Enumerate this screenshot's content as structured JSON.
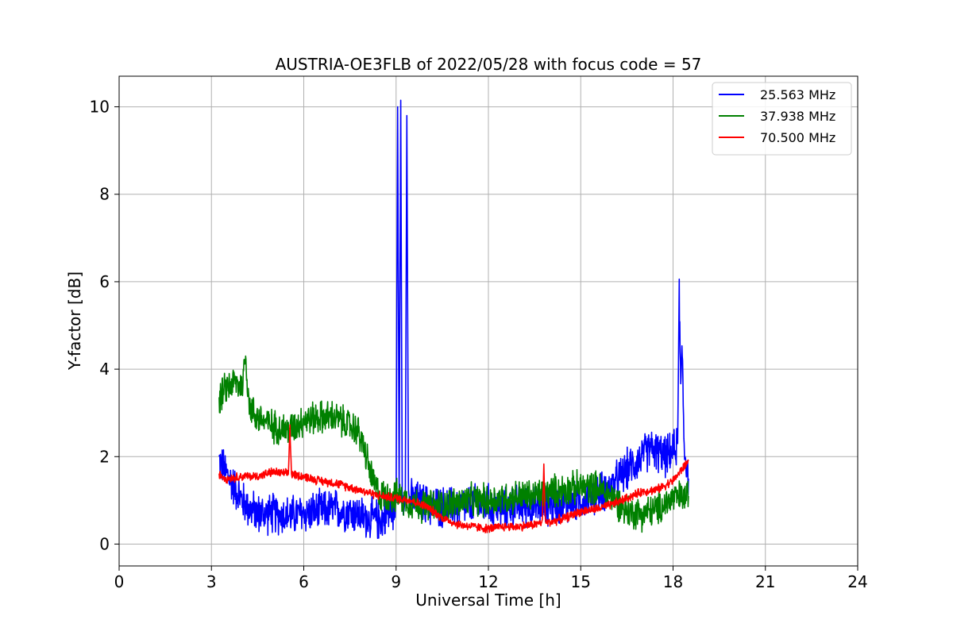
{
  "chart_data": {
    "type": "line",
    "title": "AUSTRIA-OE3FLB of 2022/05/28 with focus code = 57",
    "xlabel": "Universal Time [h]",
    "ylabel": "Y-factor [dB]",
    "xlim": [
      0,
      24
    ],
    "ylim": [
      -0.5,
      10.7
    ],
    "xticks": [
      0,
      3,
      6,
      9,
      12,
      15,
      18,
      21,
      24
    ],
    "xtick_labels": [
      "0",
      "3",
      "6",
      "9",
      "12",
      "15",
      "18",
      "21",
      "24"
    ],
    "yticks": [
      0,
      2,
      4,
      6,
      8,
      10
    ],
    "ytick_labels": [
      "0",
      "2",
      "4",
      "6",
      "8",
      "10"
    ],
    "grid": true,
    "legend_position": "top-right",
    "series": [
      {
        "name": "25.563 MHz",
        "color": "#0000ff",
        "x": [
          3.25,
          3.5,
          3.75,
          4.0,
          4.25,
          4.5,
          5.0,
          5.5,
          6.0,
          6.5,
          7.0,
          7.5,
          8.0,
          8.5,
          8.9,
          9.0,
          9.05,
          9.1,
          9.15,
          9.2,
          9.3,
          9.35,
          9.4,
          9.45,
          9.6,
          10.0,
          10.5,
          11.0,
          11.5,
          12.0,
          12.5,
          13.0,
          13.5,
          14.0,
          14.5,
          15.0,
          15.5,
          16.0,
          16.5,
          17.0,
          17.25,
          17.5,
          17.75,
          18.0,
          18.15,
          18.2,
          18.25,
          18.3,
          18.35,
          18.4,
          18.5
        ],
        "values": [
          1.9,
          1.6,
          1.3,
          1.0,
          0.8,
          0.7,
          0.7,
          0.65,
          0.7,
          0.75,
          0.8,
          0.75,
          0.6,
          0.55,
          0.8,
          1.0,
          10.0,
          1.2,
          10.15,
          1.2,
          1.1,
          9.8,
          1.1,
          1.0,
          1.0,
          0.9,
          0.85,
          0.85,
          0.9,
          0.9,
          0.8,
          0.9,
          0.85,
          0.9,
          0.9,
          1.0,
          1.15,
          1.3,
          1.7,
          2.0,
          2.2,
          2.1,
          2.0,
          2.1,
          2.3,
          5.8,
          3.5,
          4.5,
          2.5,
          2.0,
          1.5
        ]
      },
      {
        "name": "37.938 MHz",
        "color": "#008000",
        "x": [
          3.25,
          3.5,
          3.75,
          4.0,
          4.1,
          4.25,
          4.5,
          5.0,
          5.5,
          6.0,
          6.5,
          7.0,
          7.5,
          7.75,
          8.0,
          8.25,
          8.5,
          9.0,
          9.5,
          10.0,
          10.5,
          11.0,
          11.5,
          12.0,
          12.5,
          13.0,
          13.5,
          14.0,
          14.5,
          15.0,
          15.5,
          16.0,
          16.5,
          17.0,
          17.5,
          18.0,
          18.5
        ],
        "values": [
          3.3,
          3.6,
          3.7,
          3.6,
          4.3,
          3.1,
          2.9,
          2.7,
          2.6,
          2.85,
          2.9,
          2.9,
          2.7,
          2.6,
          2.1,
          1.4,
          1.1,
          1.1,
          0.95,
          0.85,
          0.9,
          0.95,
          1.0,
          1.0,
          1.05,
          1.1,
          1.1,
          1.2,
          1.25,
          1.3,
          1.3,
          1.1,
          0.75,
          0.7,
          0.8,
          1.05,
          1.1
        ]
      },
      {
        "name": "70.500 MHz",
        "color": "#ff0000",
        "x": [
          3.25,
          3.5,
          4.0,
          4.5,
          5.0,
          5.5,
          5.55,
          5.6,
          6.0,
          6.5,
          7.0,
          7.5,
          8.0,
          8.5,
          9.0,
          9.5,
          10.0,
          10.5,
          11.0,
          11.5,
          12.0,
          12.5,
          13.0,
          13.5,
          13.75,
          13.8,
          13.85,
          14.0,
          14.5,
          15.0,
          15.5,
          16.0,
          16.5,
          17.0,
          17.5,
          18.0,
          18.5
        ],
        "values": [
          1.6,
          1.5,
          1.55,
          1.55,
          1.65,
          1.6,
          2.7,
          1.6,
          1.55,
          1.45,
          1.4,
          1.3,
          1.2,
          1.1,
          1.05,
          1.0,
          0.85,
          0.6,
          0.45,
          0.4,
          0.35,
          0.4,
          0.4,
          0.45,
          0.5,
          1.8,
          0.5,
          0.5,
          0.6,
          0.75,
          0.8,
          0.9,
          1.05,
          1.2,
          1.25,
          1.45,
          1.9
        ]
      }
    ]
  }
}
